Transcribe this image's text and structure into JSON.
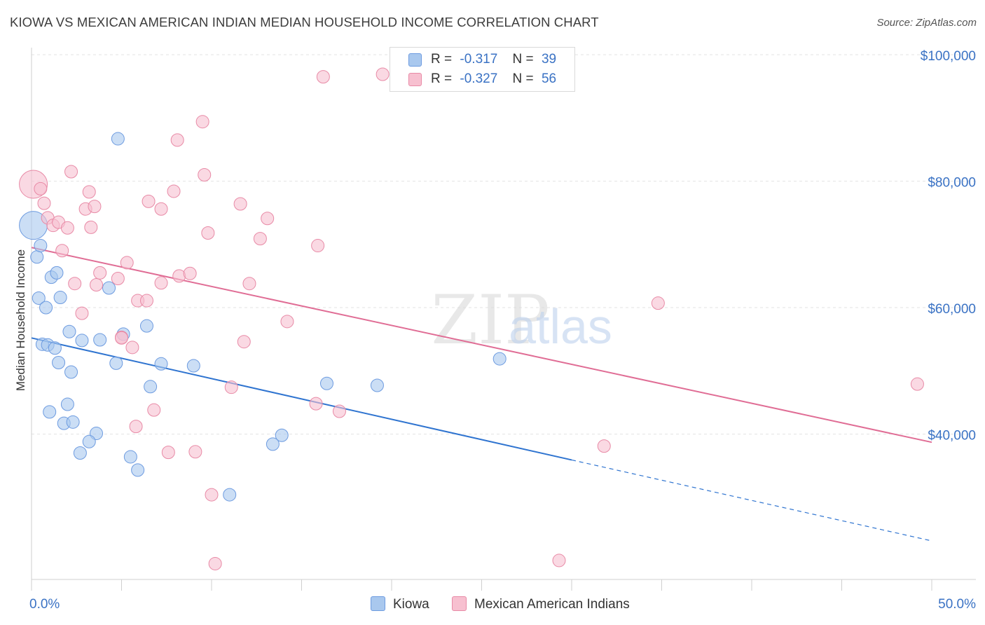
{
  "title": "KIOWA VS MEXICAN AMERICAN INDIAN MEDIAN HOUSEHOLD INCOME CORRELATION CHART",
  "source": "Source: ZipAtlas.com",
  "watermark": {
    "zip": "ZIP",
    "atlas": "atlas"
  },
  "legend_top": {
    "rows": [
      {
        "r_label": "R =",
        "r_value": "-0.317",
        "n_label": "N =",
        "n_value": "39",
        "color": "#a9c8ee",
        "border": "#6d9be0"
      },
      {
        "r_label": "R =",
        "r_value": "-0.327",
        "n_label": "N =",
        "n_value": "56",
        "color": "#f7c0d0",
        "border": "#e88aa6"
      }
    ]
  },
  "legend_bottom": {
    "items": [
      {
        "label": "Kiowa",
        "color": "#a9c8ee",
        "border": "#6d9be0"
      },
      {
        "label": "Mexican American Indians",
        "color": "#f7c0d0",
        "border": "#e88aa6"
      }
    ]
  },
  "chart_data": {
    "type": "scatter",
    "title": "KIOWA VS MEXICAN AMERICAN INDIAN MEDIAN HOUSEHOLD INCOME CORRELATION CHART",
    "xlabel": "",
    "ylabel": "Median Household Income",
    "xlim": [
      0,
      50
    ],
    "ylim": [
      19000,
      104000
    ],
    "x_tick_labels": [
      "0.0%",
      "50.0%"
    ],
    "x_ticks": [
      0,
      50
    ],
    "y_tick_labels": [
      "$40,000",
      "$60,000",
      "$80,000",
      "$100,000"
    ],
    "y_ticks": [
      40000,
      60000,
      80000,
      100000
    ],
    "grid": true,
    "legend_placement": "top-center",
    "series": [
      {
        "name": "Kiowa",
        "color": "#a9c8ee",
        "edge": "#6d9be0",
        "line_color": "#2f74d0",
        "trend": {
          "x": [
            0,
            30
          ],
          "y": [
            57200,
            37900
          ],
          "dashed_to": [
            50,
            25100
          ]
        },
        "points": [
          {
            "x": 0.1,
            "y": 75000,
            "big": true
          },
          {
            "x": 0.3,
            "y": 70000
          },
          {
            "x": 0.5,
            "y": 71800
          },
          {
            "x": 0.4,
            "y": 63500
          },
          {
            "x": 0.8,
            "y": 62000
          },
          {
            "x": 0.6,
            "y": 56200
          },
          {
            "x": 0.9,
            "y": 56100
          },
          {
            "x": 1.1,
            "y": 66800
          },
          {
            "x": 1.4,
            "y": 67500
          },
          {
            "x": 1.6,
            "y": 63600
          },
          {
            "x": 1.3,
            "y": 55600
          },
          {
            "x": 1.5,
            "y": 53300
          },
          {
            "x": 2.1,
            "y": 58200
          },
          {
            "x": 2.2,
            "y": 51800
          },
          {
            "x": 2.8,
            "y": 56800
          },
          {
            "x": 3.8,
            "y": 56900
          },
          {
            "x": 4.3,
            "y": 65100
          },
          {
            "x": 4.7,
            "y": 53200
          },
          {
            "x": 5.1,
            "y": 57800
          },
          {
            "x": 6.4,
            "y": 59100
          },
          {
            "x": 7.2,
            "y": 53100
          },
          {
            "x": 6.6,
            "y": 49500
          },
          {
            "x": 9.0,
            "y": 52800
          },
          {
            "x": 4.8,
            "y": 88700
          },
          {
            "x": 1.0,
            "y": 45500
          },
          {
            "x": 2.0,
            "y": 46700
          },
          {
            "x": 1.8,
            "y": 43700
          },
          {
            "x": 2.3,
            "y": 43900
          },
          {
            "x": 3.6,
            "y": 42100
          },
          {
            "x": 3.2,
            "y": 40800
          },
          {
            "x": 2.7,
            "y": 39000
          },
          {
            "x": 5.5,
            "y": 38400
          },
          {
            "x": 5.9,
            "y": 36300
          },
          {
            "x": 11.0,
            "y": 32400
          },
          {
            "x": 13.4,
            "y": 40400
          },
          {
            "x": 13.9,
            "y": 41800
          },
          {
            "x": 16.4,
            "y": 50000
          },
          {
            "x": 19.2,
            "y": 49700
          },
          {
            "x": 26.0,
            "y": 53900
          }
        ]
      },
      {
        "name": "Mexican American Indians",
        "color": "#f7c0d0",
        "edge": "#e88aa6",
        "line_color": "#e06d95",
        "trend": {
          "x": [
            0,
            50
          ],
          "y": [
            71500,
            40700
          ]
        },
        "points": [
          {
            "x": 0.1,
            "y": 81500,
            "big": true
          },
          {
            "x": 0.5,
            "y": 80800
          },
          {
            "x": 0.7,
            "y": 78500
          },
          {
            "x": 0.9,
            "y": 76200
          },
          {
            "x": 1.2,
            "y": 75000
          },
          {
            "x": 1.5,
            "y": 75500
          },
          {
            "x": 2.0,
            "y": 74600
          },
          {
            "x": 1.7,
            "y": 71000
          },
          {
            "x": 2.2,
            "y": 83500
          },
          {
            "x": 3.0,
            "y": 77600
          },
          {
            "x": 3.2,
            "y": 80300
          },
          {
            "x": 3.5,
            "y": 78000
          },
          {
            "x": 3.3,
            "y": 74700
          },
          {
            "x": 2.4,
            "y": 65800
          },
          {
            "x": 3.6,
            "y": 65600
          },
          {
            "x": 3.8,
            "y": 67500
          },
          {
            "x": 2.8,
            "y": 61100
          },
          {
            "x": 4.8,
            "y": 66600
          },
          {
            "x": 5.3,
            "y": 69100
          },
          {
            "x": 5.9,
            "y": 63100
          },
          {
            "x": 6.4,
            "y": 63100
          },
          {
            "x": 5.0,
            "y": 57300
          },
          {
            "x": 5.0,
            "y": 57200
          },
          {
            "x": 5.6,
            "y": 55700
          },
          {
            "x": 6.5,
            "y": 78800
          },
          {
            "x": 7.2,
            "y": 77600
          },
          {
            "x": 7.9,
            "y": 80400
          },
          {
            "x": 8.1,
            "y": 88500
          },
          {
            "x": 7.2,
            "y": 65900
          },
          {
            "x": 8.2,
            "y": 67000
          },
          {
            "x": 8.8,
            "y": 67400
          },
          {
            "x": 9.5,
            "y": 91400
          },
          {
            "x": 9.6,
            "y": 83000
          },
          {
            "x": 9.8,
            "y": 73800
          },
          {
            "x": 11.6,
            "y": 78400
          },
          {
            "x": 12.1,
            "y": 65800
          },
          {
            "x": 11.8,
            "y": 56600
          },
          {
            "x": 11.1,
            "y": 49400
          },
          {
            "x": 12.7,
            "y": 72900
          },
          {
            "x": 13.1,
            "y": 76100
          },
          {
            "x": 14.2,
            "y": 59800
          },
          {
            "x": 15.9,
            "y": 71800
          },
          {
            "x": 16.2,
            "y": 98500
          },
          {
            "x": 19.5,
            "y": 98900
          },
          {
            "x": 15.8,
            "y": 46800
          },
          {
            "x": 17.1,
            "y": 45600
          },
          {
            "x": 6.8,
            "y": 45800
          },
          {
            "x": 5.8,
            "y": 43200
          },
          {
            "x": 7.6,
            "y": 39100
          },
          {
            "x": 9.1,
            "y": 39200
          },
          {
            "x": 10.0,
            "y": 32400
          },
          {
            "x": 10.2,
            "y": 21500
          },
          {
            "x": 29.3,
            "y": 22000
          },
          {
            "x": 31.8,
            "y": 40100
          },
          {
            "x": 34.8,
            "y": 62700
          },
          {
            "x": 49.2,
            "y": 49900
          }
        ]
      }
    ]
  }
}
